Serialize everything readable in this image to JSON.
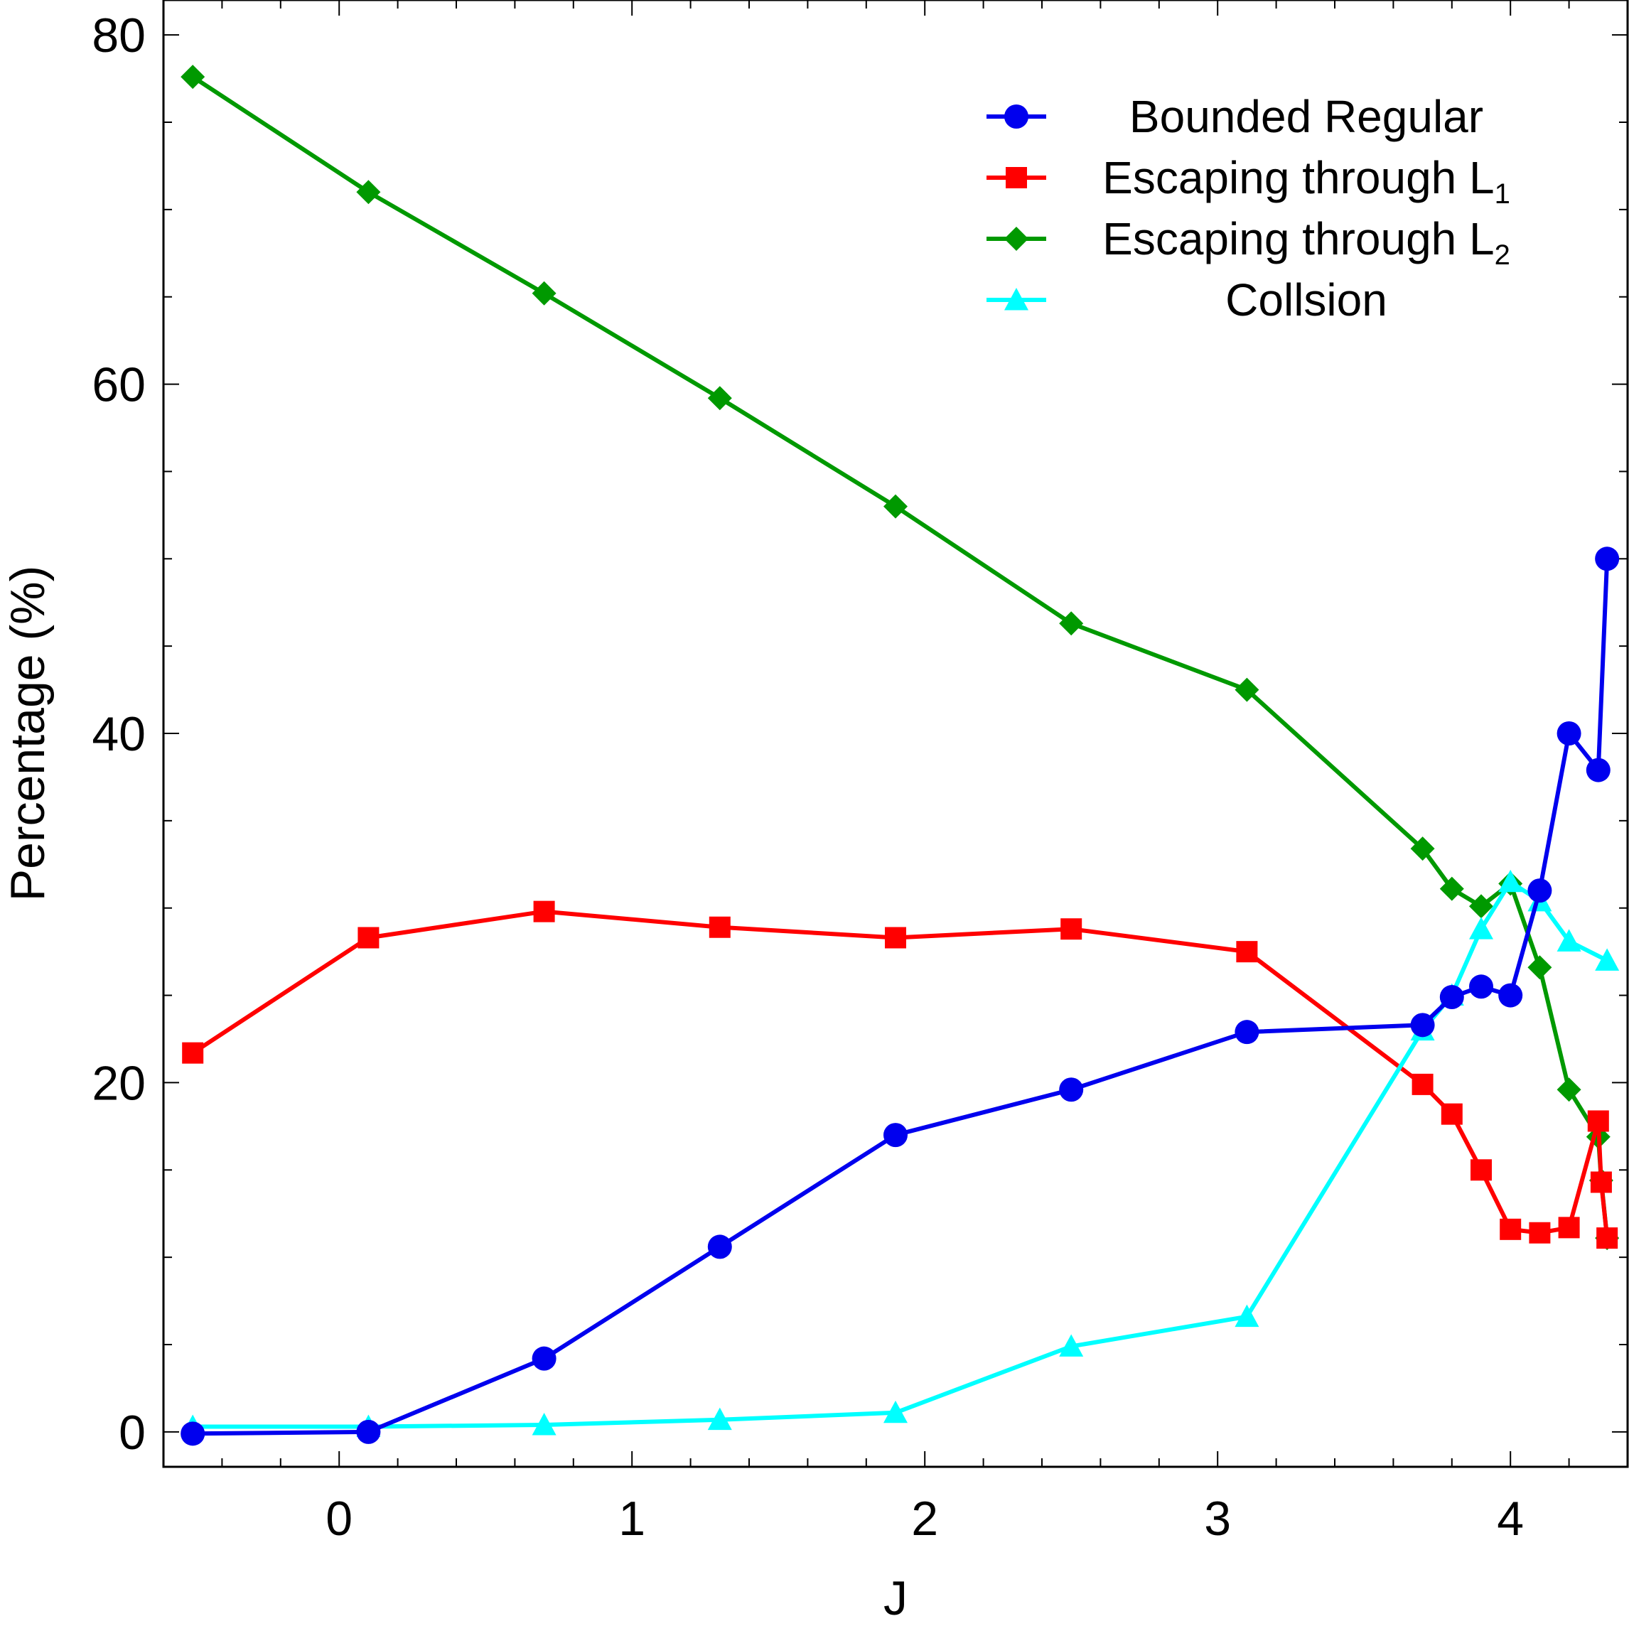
{
  "chart_data": {
    "type": "line",
    "title": "",
    "xlabel": "J",
    "ylabel": "Percentage (%)",
    "xlim": [
      -0.6,
      4.4
    ],
    "ylim": [
      -2,
      82
    ],
    "xticks": [
      0,
      1,
      2,
      3,
      4
    ],
    "yticks": [
      0,
      20,
      40,
      60,
      80
    ],
    "grid": false,
    "legend_position": "top-right",
    "series": [
      {
        "name": "Bounded Regular",
        "legend_label": "Bounded Regular",
        "legend_subscript": "",
        "color": "#0000ee",
        "marker": "circle",
        "x": [
          -0.5,
          0.1,
          0.7,
          1.3,
          1.9,
          2.5,
          3.1,
          3.7,
          3.8,
          3.9,
          4.0,
          4.1,
          4.2,
          4.3,
          4.33
        ],
        "y": [
          -0.1,
          0.0,
          4.2,
          10.6,
          17.0,
          19.6,
          22.9,
          23.3,
          24.9,
          25.5,
          25.0,
          31.0,
          40.0,
          37.9,
          50.0
        ]
      },
      {
        "name": "Escaping through L1",
        "legend_label": "Escaping through L",
        "legend_subscript": "1",
        "color": "#ff0000",
        "marker": "square",
        "x": [
          -0.5,
          0.1,
          0.7,
          1.3,
          1.9,
          2.5,
          3.1,
          3.7,
          3.8,
          3.9,
          4.0,
          4.1,
          4.2,
          4.3,
          4.31,
          4.33
        ],
        "y": [
          21.7,
          28.3,
          29.8,
          28.9,
          28.3,
          28.8,
          27.5,
          19.9,
          18.2,
          15.0,
          11.6,
          11.4,
          11.7,
          17.8,
          14.3,
          11.1
        ]
      },
      {
        "name": "Escaping through L2",
        "legend_label": "Escaping through L",
        "legend_subscript": "2",
        "color": "#009900",
        "marker": "diamond",
        "x": [
          -0.5,
          0.1,
          0.7,
          1.3,
          1.9,
          2.5,
          3.1,
          3.7,
          3.8,
          3.9,
          4.0,
          4.1,
          4.2,
          4.3,
          4.31,
          4.33
        ],
        "y": [
          77.6,
          71.0,
          65.2,
          59.2,
          53.0,
          46.3,
          42.5,
          33.4,
          31.1,
          30.1,
          31.4,
          26.6,
          19.6,
          16.9,
          14.4,
          11.1
        ]
      },
      {
        "name": "Collsion",
        "legend_label": "Collsion",
        "legend_subscript": "",
        "color": "#00ffff",
        "marker": "triangle",
        "x": [
          -0.5,
          0.1,
          0.7,
          1.3,
          1.9,
          2.5,
          3.1,
          3.7,
          3.8,
          3.9,
          4.0,
          4.1,
          4.2,
          4.33
        ],
        "y": [
          0.3,
          0.3,
          0.4,
          0.7,
          1.1,
          4.9,
          6.6,
          23.0,
          25.0,
          28.8,
          31.5,
          30.4,
          28.1,
          27.0
        ]
      }
    ]
  }
}
